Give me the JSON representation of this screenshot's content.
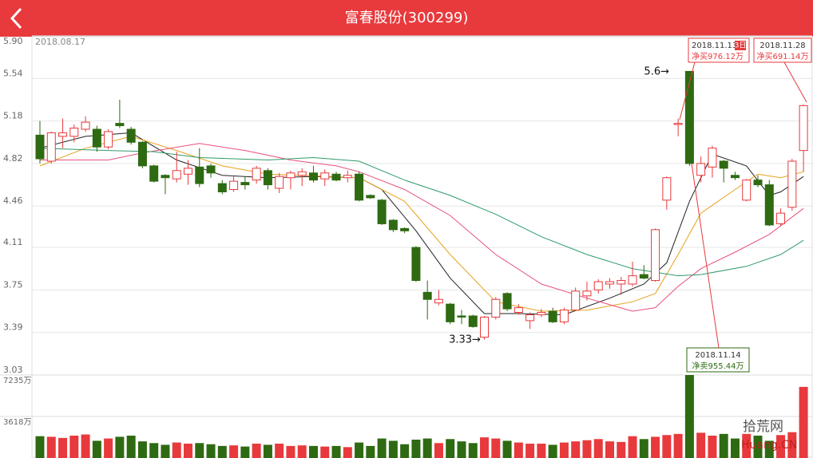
{
  "header": {
    "title": "富春股份(300299)"
  },
  "chart_data": [
    {
      "type": "candlestick",
      "date": "2018.08.17",
      "up_color": "#e8393c",
      "down_color": "#2e6a12",
      "open": [
        5.06,
        4.84,
        5.05,
        5.05,
        5.11,
        5.11,
        4.96,
        5.16,
        5.11,
        5.0,
        4.8,
        4.72,
        4.69,
        4.73,
        4.79,
        4.8,
        4.65,
        4.6,
        4.66,
        4.68,
        4.76,
        4.61,
        4.7,
        4.72,
        4.74,
        4.69,
        4.73,
        4.7,
        4.73,
        4.55,
        4.51,
        4.34,
        4.27,
        4.11,
        3.73,
        3.64,
        3.63,
        3.53,
        3.53,
        3.35,
        3.52,
        3.72,
        3.56,
        3.49,
        3.54,
        3.57,
        3.48,
        3.58,
        3.7,
        3.75,
        3.8,
        3.8,
        3.8,
        3.88,
        3.83,
        4.51,
        5.15,
        5.6,
        4.72,
        4.79,
        4.84,
        4.72,
        4.51,
        4.68,
        4.64,
        4.31,
        4.45,
        4.93
      ],
      "high": [
        5.18,
        5.09,
        5.2,
        5.15,
        5.22,
        5.14,
        5.11,
        5.36,
        5.13,
        5.01,
        4.81,
        4.73,
        4.92,
        4.85,
        4.95,
        4.82,
        4.68,
        4.72,
        4.71,
        4.8,
        4.78,
        4.74,
        4.76,
        4.78,
        4.8,
        4.77,
        4.75,
        4.76,
        4.75,
        4.56,
        4.52,
        4.35,
        4.28,
        4.12,
        3.83,
        3.75,
        3.64,
        3.58,
        3.54,
        3.53,
        3.69,
        3.73,
        3.63,
        3.56,
        3.59,
        3.6,
        3.6,
        3.77,
        3.82,
        3.84,
        3.85,
        3.86,
        3.99,
        3.96,
        4.27,
        4.71,
        5.2,
        5.6,
        4.88,
        4.97,
        4.85,
        4.75,
        4.69,
        4.72,
        4.68,
        4.44,
        4.86,
        5.32
      ],
      "low": [
        4.82,
        4.82,
        4.95,
        5.0,
        5.09,
        4.92,
        4.94,
        5.12,
        4.98,
        4.78,
        4.66,
        4.56,
        4.66,
        4.64,
        4.62,
        4.7,
        4.56,
        4.58,
        4.6,
        4.65,
        4.6,
        4.57,
        4.6,
        4.63,
        4.66,
        4.63,
        4.67,
        4.66,
        4.5,
        4.52,
        4.3,
        4.24,
        4.23,
        3.82,
        3.5,
        3.62,
        3.46,
        3.46,
        3.43,
        3.33,
        3.5,
        3.57,
        3.54,
        3.42,
        3.52,
        3.47,
        3.46,
        3.57,
        3.66,
        3.72,
        3.76,
        3.71,
        3.78,
        3.84,
        3.82,
        4.43,
        5.05,
        4.8,
        4.66,
        4.7,
        4.66,
        4.68,
        4.5,
        4.62,
        4.29,
        4.29,
        4.42,
        4.75
      ],
      "close": [
        4.86,
        5.08,
        5.08,
        5.12,
        5.17,
        4.96,
        5.09,
        5.14,
        5.0,
        4.8,
        4.67,
        4.7,
        4.76,
        4.78,
        4.65,
        4.74,
        4.58,
        4.67,
        4.64,
        4.78,
        4.64,
        4.71,
        4.74,
        4.75,
        4.68,
        4.74,
        4.68,
        4.72,
        4.51,
        4.53,
        4.31,
        4.26,
        4.25,
        3.83,
        3.67,
        3.67,
        3.48,
        3.52,
        3.44,
        3.52,
        3.67,
        3.59,
        3.6,
        3.54,
        3.56,
        3.48,
        3.58,
        3.74,
        3.74,
        3.82,
        3.82,
        3.83,
        3.87,
        3.85,
        4.26,
        4.7,
        5.16,
        4.82,
        4.82,
        4.95,
        4.78,
        4.7,
        4.68,
        4.64,
        4.3,
        4.4,
        4.84,
        5.31
      ],
      "series": [
        {
          "color": "#222222",
          "x": [
            0,
            4,
            8,
            12,
            16,
            20,
            24,
            28,
            30,
            33,
            36,
            39,
            42,
            46,
            50,
            53,
            55,
            57,
            59,
            62,
            64,
            65,
            67
          ],
          "values": [
            4.95,
            5.05,
            5.08,
            4.85,
            4.72,
            4.7,
            4.71,
            4.7,
            4.6,
            4.25,
            3.85,
            3.55,
            3.55,
            3.54,
            3.68,
            3.8,
            3.98,
            4.5,
            4.9,
            4.8,
            4.55,
            4.58,
            4.71
          ]
        },
        {
          "color": "#e8a21c",
          "x": [
            0,
            4,
            8,
            12,
            16,
            20,
            28,
            32,
            36,
            40,
            44,
            48,
            52,
            54,
            56,
            58,
            61,
            63,
            65,
            67
          ],
          "values": [
            4.8,
            4.95,
            5.05,
            4.93,
            4.8,
            4.73,
            4.7,
            4.5,
            4.05,
            3.65,
            3.57,
            3.58,
            3.65,
            3.72,
            4.05,
            4.4,
            4.6,
            4.73,
            4.7,
            4.75
          ]
        },
        {
          "color": "#e8507a",
          "x": [
            0,
            6,
            9,
            14,
            18,
            22,
            26,
            28,
            32,
            36,
            40,
            44,
            48,
            52,
            54,
            56,
            58,
            61,
            64,
            67
          ],
          "values": [
            4.85,
            4.85,
            4.91,
            4.99,
            4.93,
            4.85,
            4.8,
            4.75,
            4.6,
            4.38,
            4.05,
            3.8,
            3.68,
            3.57,
            3.6,
            3.78,
            3.93,
            4.07,
            4.22,
            4.44
          ]
        },
        {
          "color": "#2f9a6a",
          "x": [
            0,
            6,
            10,
            14,
            20,
            24,
            28,
            32,
            36,
            40,
            44,
            48,
            52,
            56,
            58,
            62,
            65,
            67
          ],
          "values": [
            4.95,
            4.93,
            4.92,
            4.87,
            4.85,
            4.87,
            4.84,
            4.68,
            4.55,
            4.39,
            4.2,
            4.05,
            3.93,
            3.87,
            3.88,
            3.95,
            4.05,
            4.17
          ]
        }
      ],
      "ylim": [
        3.03,
        5.9
      ],
      "yticks": [
        {
          "value": 5.9,
          "label": "5.90"
        },
        5.54,
        5.18,
        4.82,
        4.46,
        4.11,
        3.75,
        3.39,
        3.03
      ],
      "annotations": [
        {
          "text": "5.6→"
        },
        {
          "text": "3.33→"
        },
        {
          "date": "2018.11.13",
          "badge": "3日",
          "text": "净买976.12万"
        },
        {
          "date": "2018.11.28",
          "text": "净买691.14万"
        },
        {
          "date": "2018.11.14",
          "text": "净卖955.44万"
        }
      ]
    },
    {
      "type": "bar",
      "values": [
        1900,
        1850,
        1750,
        1950,
        2050,
        1500,
        1700,
        1850,
        1950,
        1450,
        1300,
        1150,
        1350,
        1250,
        1300,
        1200,
        1050,
        1100,
        1000,
        1250,
        1150,
        1250,
        1050,
        1100,
        1050,
        1000,
        1050,
        950,
        1350,
        1050,
        1700,
        1500,
        1200,
        1600,
        1700,
        1300,
        1650,
        1450,
        1300,
        1800,
        1700,
        1500,
        1350,
        1250,
        1250,
        1150,
        1350,
        1450,
        1550,
        1650,
        1450,
        1400,
        1900,
        1650,
        1850,
        2000,
        2100,
        7235,
        2200,
        1950,
        2100,
        1700,
        2100,
        1950,
        1500,
        2000,
        2250,
        6200
      ],
      "ylim": [
        0,
        7235
      ],
      "yticks": [
        {
          "value": 7235,
          "label": "7235万"
        },
        {
          "value": 3618,
          "label": "3618万"
        }
      ]
    }
  ],
  "watermark": {
    "cn": "拾荒网",
    "en": "Huang.CN"
  }
}
